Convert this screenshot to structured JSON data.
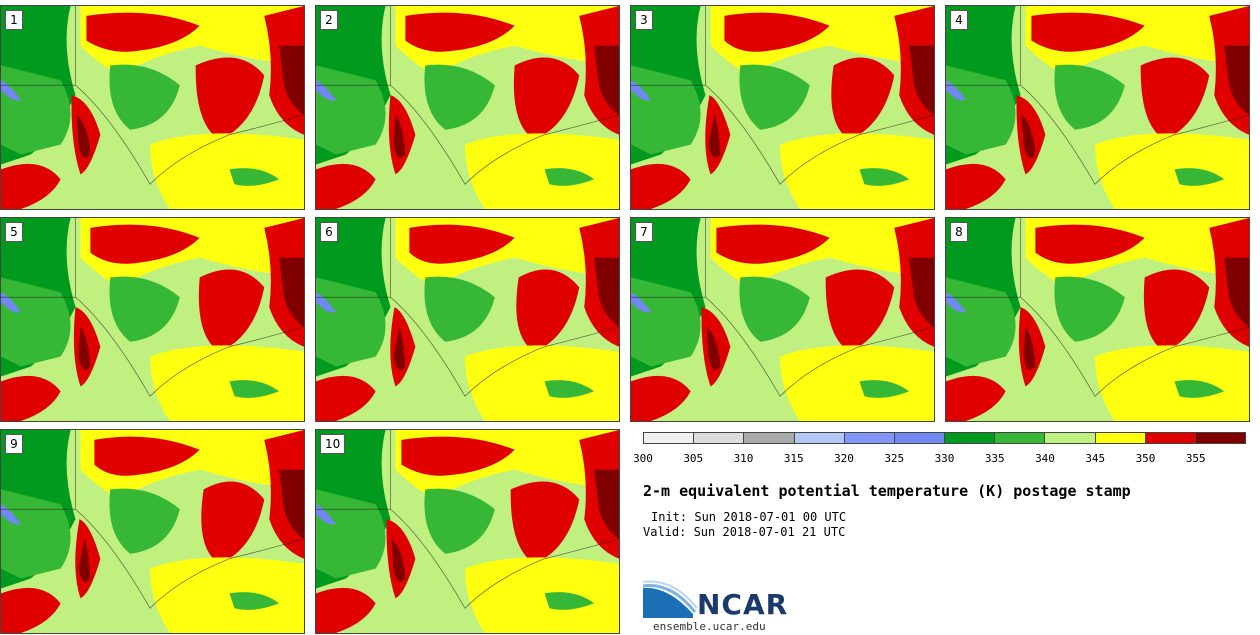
{
  "panels": [
    {
      "label": "1"
    },
    {
      "label": "2"
    },
    {
      "label": "3"
    },
    {
      "label": "4"
    },
    {
      "label": "5"
    },
    {
      "label": "6"
    },
    {
      "label": "7"
    },
    {
      "label": "8"
    },
    {
      "label": "9"
    },
    {
      "label": "10"
    }
  ],
  "colorbar": {
    "colors": [
      "#f0f0f0",
      "#dcdcdc",
      "#aaaaaa",
      "#b4c8f8",
      "#8296f8",
      "#7088f0",
      "#009a1e",
      "#36b836",
      "#c0f080",
      "#ffff10",
      "#e00000",
      "#800000"
    ],
    "ticks": [
      "300",
      "305",
      "310",
      "315",
      "320",
      "325",
      "330",
      "335",
      "340",
      "345",
      "350",
      "355"
    ]
  },
  "title": "2-m equivalent potential temperature (K) postage stamp",
  "init": "Init: Sun 2018-07-01 00 UTC",
  "valid": "Valid: Sun 2018-07-01 21 UTC",
  "logo": {
    "text": "NCAR",
    "site": "ensemble.ucar.edu"
  },
  "map_colors": {
    "green_dark": "#009a1e",
    "green_mid": "#36b836",
    "green_light": "#c0f080",
    "yellow": "#ffff10",
    "red": "#e00000",
    "red_dark": "#800000",
    "lake": "#7088f0"
  }
}
